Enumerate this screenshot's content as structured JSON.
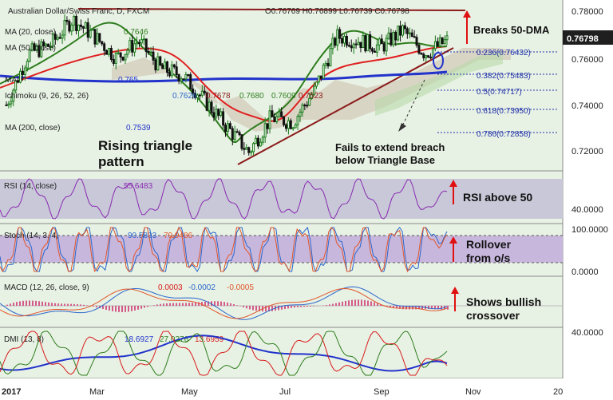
{
  "header": {
    "title": "Australian Dollar/Swiss Franc, D, FXCM",
    "ohlc": "O0.76769  H0.76899  L0.76739  C0.76798"
  },
  "price_panel": {
    "ma20_label": "MA (20, close)",
    "ma20_value": "0.7646",
    "ma50_label": "MA (50, close)",
    "ma100_label": "MA",
    "ma100_value": "0.765",
    "ichimoku_label": "Ichimoku (9, 26, 52, 26)",
    "ichimoku_values": [
      "0.7626",
      "0.7678",
      "0.7680",
      "0.7609",
      "0.7523"
    ],
    "ma200_label": "MA (200, close)",
    "ma200_value": "0.7539",
    "last_price": "0.76798",
    "fib_levels": [
      "0.236(0.76432)",
      "0.382(0.75483)",
      "0.5(0.74717)",
      "0.618(0.73950)",
      "0.786(0.72858)"
    ],
    "annotations": {
      "breaks": "Breaks 50-DMA",
      "rising1": "Rising triangle",
      "rising2": "pattern",
      "fails1": "Fails to extend breach",
      "fails2": "below Triangle Base"
    }
  },
  "rsi_panel": {
    "label": "RSI (14, close)",
    "value": "55.6483",
    "note": "RSI above 50"
  },
  "stoch_panel": {
    "label": "Stoch (14, 3, 4)",
    "k_value": "90.5803",
    "d_value": "79.9486",
    "note1": "Rollover",
    "note2": "from o/s"
  },
  "macd_panel": {
    "label": "MACD (12, 26, close, 9)",
    "v1": "0.0003",
    "v2": "-0.0002",
    "v3": "-0.0005",
    "note1": "Shows bullish",
    "note2": "crossover"
  },
  "dmi_panel": {
    "label": "DMI (13, 8)",
    "v1": "18.6927",
    "v2": "27.0276",
    "v3": "13.6959"
  },
  "colors": {
    "price_up": "#1a7a1a",
    "ma20": "#2e7d1e",
    "ma50": "#e02020",
    "ma200": "#2233cc",
    "rsi": "#8a2bb0",
    "stoch_k": "#2a66cc",
    "stoch_d": "#e0552a",
    "arrow": "#e01010"
  },
  "chart_data": {
    "type": "line",
    "x_ticks": [
      "2017",
      "Mar",
      "May",
      "Jul",
      "Sep",
      "Nov",
      "20"
    ],
    "y_ticks": [
      "0.78000",
      "0.76000",
      "0.74000",
      "0.72000"
    ],
    "ylim": [
      0.708,
      0.784
    ],
    "close_series": [
      {
        "x": "2017-01-02",
        "y": 0.738
      },
      {
        "x": "2017-01-16",
        "y": 0.762
      },
      {
        "x": "2017-01-30",
        "y": 0.766
      },
      {
        "x": "2017-02-13",
        "y": 0.778
      },
      {
        "x": "2017-02-27",
        "y": 0.77
      },
      {
        "x": "2017-03-13",
        "y": 0.76
      },
      {
        "x": "2017-03-27",
        "y": 0.768
      },
      {
        "x": "2017-04-10",
        "y": 0.755
      },
      {
        "x": "2017-04-24",
        "y": 0.752
      },
      {
        "x": "2017-05-08",
        "y": 0.74
      },
      {
        "x": "2017-05-22",
        "y": 0.728
      },
      {
        "x": "2017-06-05",
        "y": 0.716
      },
      {
        "x": "2017-06-19",
        "y": 0.732
      },
      {
        "x": "2017-07-03",
        "y": 0.73
      },
      {
        "x": "2017-07-17",
        "y": 0.745
      },
      {
        "x": "2017-07-31",
        "y": 0.77
      },
      {
        "x": "2017-08-14",
        "y": 0.768
      },
      {
        "x": "2017-08-28",
        "y": 0.765
      },
      {
        "x": "2017-09-11",
        "y": 0.773
      },
      {
        "x": "2017-09-25",
        "y": 0.762
      },
      {
        "x": "2017-10-09",
        "y": 0.768
      }
    ],
    "fib_values": [
      0.76432,
      0.75483,
      0.74717,
      0.7395,
      0.72858
    ],
    "rsi_range": [
      40,
      60
    ],
    "stoch_range": [
      0,
      100
    ],
    "dmi_ticks": [
      "40.0000"
    ],
    "rsi_ticks": [
      "40.0000"
    ],
    "stoch_ticks": [
      "100.0000",
      "0.0000"
    ],
    "macd_ticks": [
      "0.0000"
    ]
  }
}
